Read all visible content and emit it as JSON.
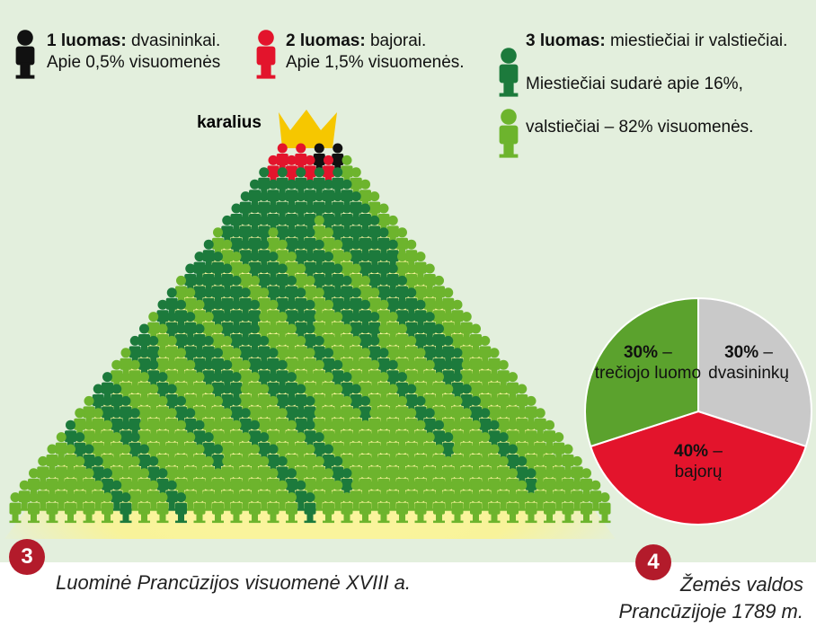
{
  "legend": [
    {
      "bold": "1 luomas:",
      "text": "dvasininkai.",
      "note": "Apie 0,5% visuomenės"
    },
    {
      "bold": "2 luomas:",
      "text": "bajorai.",
      "note": "Apie 1,5% visuomenės."
    },
    {
      "bold": "3 luomas:",
      "text": "miestiečiai ir valstiečiai.",
      "notes": [
        "Miestiečiai sudarė apie 16%,",
        "valstiečiai – 82% visuomenės."
      ]
    }
  ],
  "pyramid": {
    "king": "karalius",
    "badge": "3",
    "caption": "Luominė Prancūzijos visuomenė XVIII a."
  },
  "chart_data": {
    "type": "pie",
    "categories": [
      "dvasininkų",
      "bajorų",
      "trečiojo luomo"
    ],
    "values": [
      30,
      40,
      30
    ],
    "value_labels": [
      "30%",
      "40%",
      "30%"
    ],
    "separator": "–",
    "colors": [
      "#c9c9c9",
      "#e3142c",
      "#5ba22d"
    ],
    "badge": "4",
    "caption": "Žemės valdos Prancūzijoje 1789 m."
  }
}
